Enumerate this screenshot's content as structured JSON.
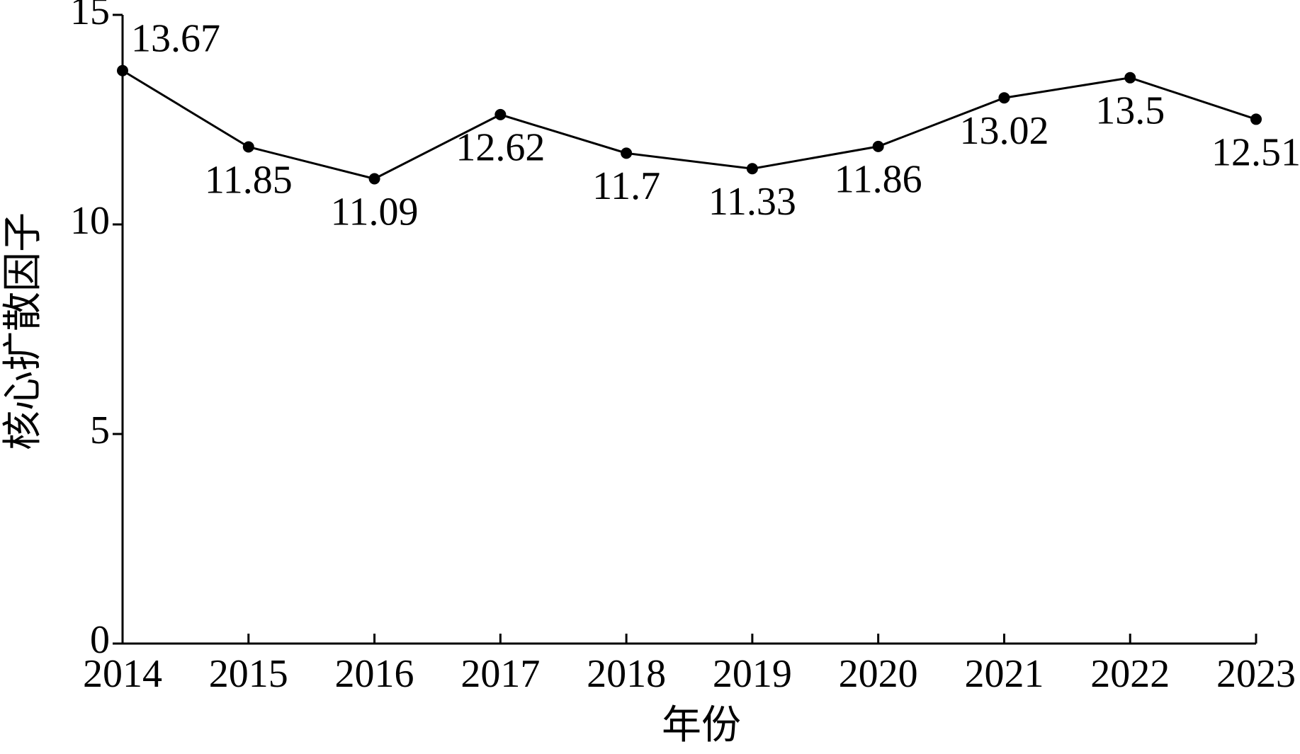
{
  "chart_data": {
    "type": "line",
    "x_label": "年份",
    "y_label": "核心扩散因子",
    "x": [
      2014,
      2015,
      2016,
      2017,
      2018,
      2019,
      2020,
      2021,
      2022,
      2023
    ],
    "series": [
      {
        "name": "核心扩散因子",
        "color": "#000000",
        "values": [
          13.67,
          11.85,
          11.09,
          12.62,
          11.7,
          11.33,
          11.86,
          13.02,
          13.5,
          12.51
        ]
      }
    ],
    "xlim": [
      2014,
      2023
    ],
    "xticks": [
      2014,
      2015,
      2016,
      2017,
      2018,
      2019,
      2020,
      2021,
      2022,
      2023
    ],
    "ylim": [
      0,
      15
    ],
    "yticks": [
      0,
      5,
      10,
      15
    ],
    "grid": false
  }
}
